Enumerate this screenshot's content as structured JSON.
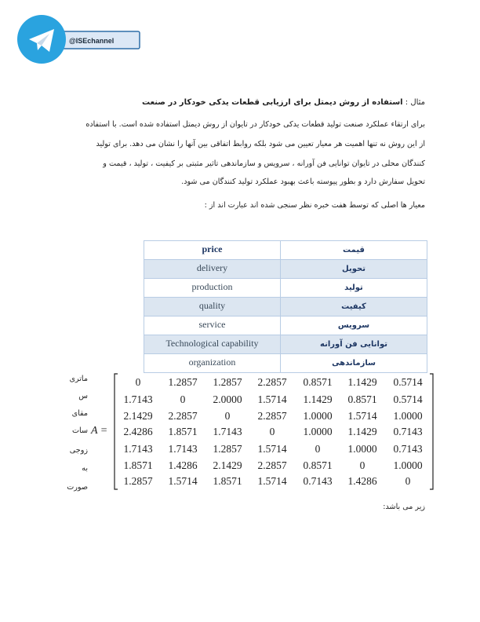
{
  "header": {
    "channel": "@ISEchannel"
  },
  "heading": {
    "label": "مثال :",
    "title": "استفاده از روش دیمتل برای ارزیابی قطعات یدکی خودکار در صنعت"
  },
  "paragraph": [
    "برای ارتقاء عملکرد صنعت تولید قطعات یدکی خودکار در تایوان از روش دیمتل استفاده شده است. با استفاده",
    "از این روش نه تنها اهمیت هر معیار تعیین می شود بلکه روابط اتفاقی بین آنها را نشان می دهد. برای تولید",
    "کنندگان محلی در تایوان توانایی فن آورانه ، سرویس و سازماندهی تاثیر مثبتی  بر کیفیت ، تولید ، قیمت و",
    "تحویل سفارش دارد و بطور پیوسته باعث بهبود عملکرد تولید کنندگان می شود."
  ],
  "criteria_intro": "معیار ها اصلی که توسط هفت خبره نظر سنجی شده اند عبارت اند از :",
  "table": {
    "rows": [
      [
        "price",
        "قیمت"
      ],
      [
        "delivery",
        "تحویل"
      ],
      [
        "production",
        "تولید"
      ],
      [
        "quality",
        "کیفیت"
      ],
      [
        "service",
        "سرویس"
      ],
      [
        "Technological capability",
        "توانایی فن آورانه"
      ],
      [
        "organization",
        "سازماندهی"
      ]
    ]
  },
  "side_text": [
    "ماتری",
    "س",
    "مقای",
    "سات",
    "زوجی",
    "به",
    "صورت"
  ],
  "matrix": {
    "label": "A =",
    "rows": [
      [
        "0",
        "1.2857",
        "1.2857",
        "2.2857",
        "0.8571",
        "1.1429",
        "0.5714"
      ],
      [
        "1.7143",
        "0",
        "2.0000",
        "1.5714",
        "1.1429",
        "0.8571",
        "0.5714"
      ],
      [
        "2.1429",
        "2.2857",
        "0",
        "2.2857",
        "1.0000",
        "1.5714",
        "1.0000"
      ],
      [
        "2.4286",
        "1.8571",
        "1.7143",
        "0",
        "1.0000",
        "1.1429",
        "0.7143"
      ],
      [
        "1.7143",
        "1.7143",
        "1.2857",
        "1.5714",
        "0",
        "1.0000",
        "0.7143"
      ],
      [
        "1.8571",
        "1.4286",
        "2.1429",
        "2.2857",
        "0.8571",
        "0",
        "1.0000"
      ],
      [
        "1.2857",
        "1.5714",
        "1.8571",
        "1.5714",
        "0.7143",
        "1.4286",
        "0"
      ]
    ]
  },
  "footer": "زیر می باشد:"
}
